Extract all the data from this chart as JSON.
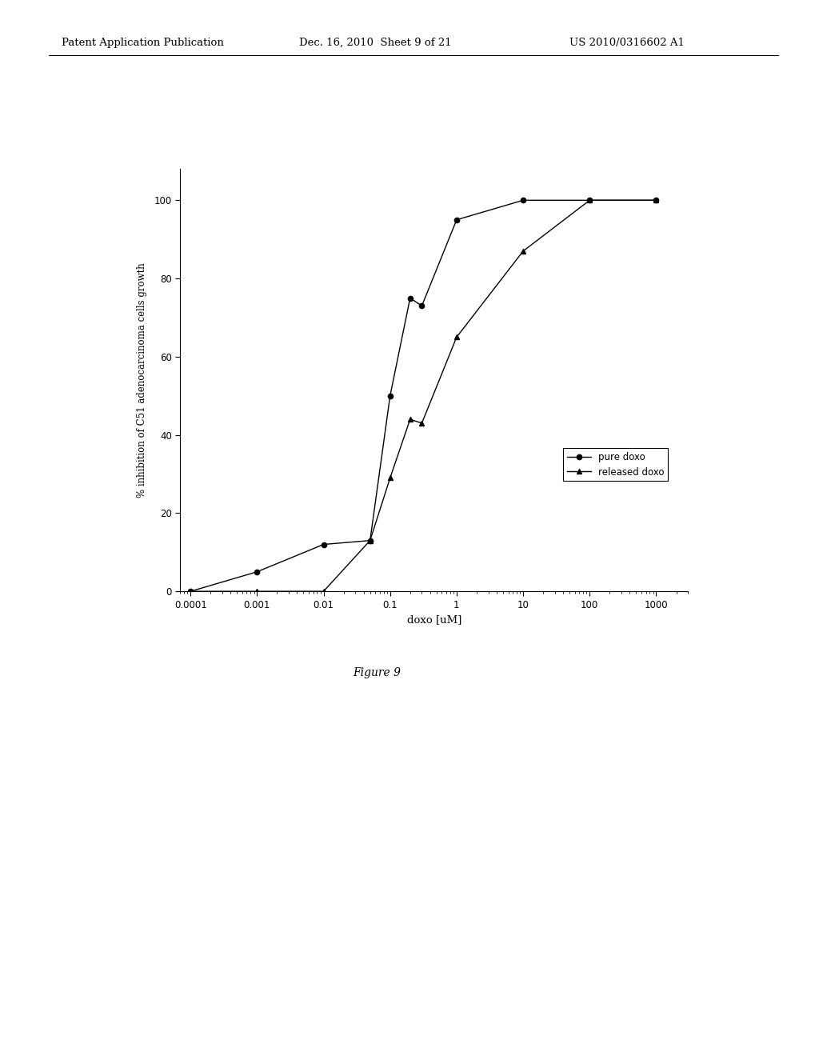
{
  "pure_doxo_x": [
    0.0001,
    0.001,
    0.01,
    0.05,
    0.1,
    0.2,
    0.3,
    1,
    10,
    100,
    1000
  ],
  "pure_doxo_y": [
    0,
    5,
    12,
    13,
    50,
    75,
    73,
    95,
    100,
    100,
    100
  ],
  "released_doxo_x": [
    0.0001,
    0.001,
    0.01,
    0.05,
    0.1,
    0.2,
    0.3,
    1,
    10,
    100,
    1000
  ],
  "released_doxo_y": [
    0,
    0,
    0,
    13,
    29,
    44,
    43,
    65,
    87,
    100,
    100
  ],
  "xlabel": "doxo [uM]",
  "ylabel": "% inhibition of C51 adenocarcinoma cells growth",
  "ylim": [
    0,
    108
  ],
  "yticks": [
    0,
    20,
    40,
    60,
    80,
    100
  ],
  "xtick_labels": [
    "0.0001",
    "0.001",
    "0.01",
    "0.1",
    "1",
    "10",
    "100",
    "1000"
  ],
  "xtick_vals": [
    0.0001,
    0.001,
    0.01,
    0.1,
    1,
    10,
    100,
    1000
  ],
  "legend_labels": [
    "pure doxo",
    "released doxo"
  ],
  "figure_caption": "Figure 9",
  "header_left": "Patent Application Publication",
  "header_center": "Dec. 16, 2010  Sheet 9 of 21",
  "header_right": "US 2010/0316602 A1",
  "background_color": "#ffffff",
  "line_color": "#000000",
  "marker_circle": "o",
  "marker_triangle": "^"
}
